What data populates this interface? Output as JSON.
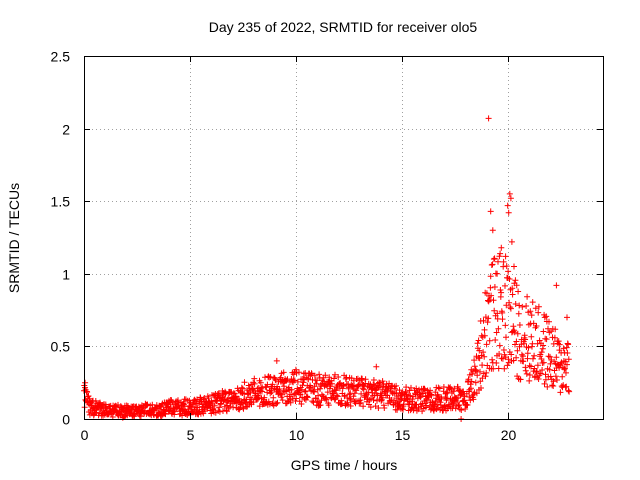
{
  "chart_data": {
    "type": "scatter",
    "title": "Day 235 of 2022, SRMTID for receiver olo5",
    "xlabel": "GPS time / hours",
    "ylabel": "SRMTID / TECUs",
    "xlim": [
      0,
      24.5
    ],
    "ylim": [
      0,
      2.5
    ],
    "xticks": [
      0,
      5,
      10,
      15,
      20
    ],
    "yticks": [
      0,
      0.5,
      1,
      1.5,
      2,
      2.5
    ],
    "xtick_labels": [
      "0",
      "5",
      "10",
      "15",
      "20"
    ],
    "ytick_labels": [
      "0",
      "0.5",
      "1",
      "1.5",
      "2",
      "2.5"
    ],
    "grid": true,
    "marker": "+",
    "colors": {
      "points": "#ff0000",
      "grid": "#a0a0a0",
      "axes": "#000000"
    },
    "series": [
      {
        "name": "olo5",
        "profile_x": [
          0,
          0.3,
          1,
          2,
          3,
          4,
          5,
          6,
          7,
          8,
          9,
          10,
          11,
          12,
          13,
          14,
          15,
          16,
          17,
          18,
          18.5,
          19,
          19.5,
          20,
          20.5,
          21,
          21.5,
          22,
          22.5,
          22.9
        ],
        "profile_y": [
          0.15,
          0.08,
          0.06,
          0.05,
          0.06,
          0.08,
          0.08,
          0.1,
          0.14,
          0.18,
          0.2,
          0.22,
          0.2,
          0.2,
          0.18,
          0.17,
          0.14,
          0.13,
          0.14,
          0.14,
          0.3,
          0.65,
          0.75,
          0.7,
          0.6,
          0.55,
          0.5,
          0.45,
          0.35,
          0.4
        ],
        "n_points": 1400,
        "outliers": [
          {
            "x": 0.05,
            "y": 0.25
          },
          {
            "x": 9.1,
            "y": 0.4
          },
          {
            "x": 13.8,
            "y": 0.36
          },
          {
            "x": 17.8,
            "y": 0.0
          },
          {
            "x": 19.1,
            "y": 2.07
          },
          {
            "x": 19.2,
            "y": 1.43
          },
          {
            "x": 19.3,
            "y": 1.3
          },
          {
            "x": 20.1,
            "y": 1.55
          },
          {
            "x": 20.15,
            "y": 1.52
          },
          {
            "x": 20.0,
            "y": 1.47
          },
          {
            "x": 20.05,
            "y": 1.42
          },
          {
            "x": 20.2,
            "y": 1.22
          },
          {
            "x": 19.9,
            "y": 1.12
          },
          {
            "x": 19.7,
            "y": 1.18
          },
          {
            "x": 20.3,
            "y": 1.05
          },
          {
            "x": 19.5,
            "y": 1.0
          },
          {
            "x": 22.3,
            "y": 0.92
          },
          {
            "x": 22.8,
            "y": 0.7
          }
        ]
      }
    ]
  }
}
